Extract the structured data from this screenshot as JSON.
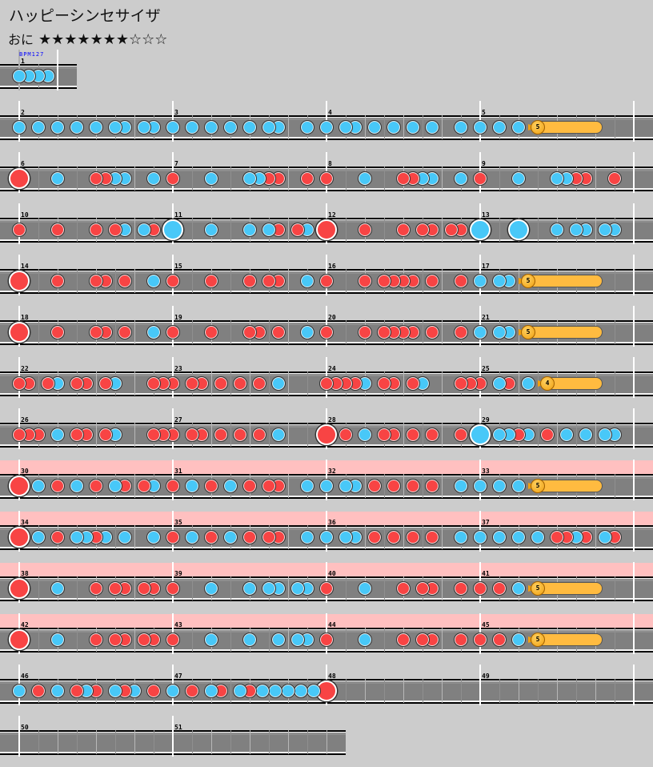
{
  "title": "ハッピーシンセサイザ",
  "difficulty": {
    "label": "おに",
    "level": 7,
    "max_level": 10,
    "stars": "★★★★★★★☆☆☆"
  },
  "bpm_label": "BPM127",
  "colors": {
    "don": "#f84444",
    "ka": "#48c8f8",
    "balloon": "#ffbb40",
    "gogo": "#ffc0c0",
    "lane": "#808080"
  },
  "note_legend": {
    "1": "don",
    "2": "ka",
    "3": "big-don",
    "4": "big-ka",
    "7": "balloon-start",
    "8": "balloon-end"
  },
  "rows": [
    {
      "gogo": false,
      "measures": [
        {
          "number": "1",
          "beats": 1,
          "notes": "2222"
        }
      ]
    },
    {
      "gogo": false,
      "measures": [
        {
          "number": "2",
          "notes": "2020202020220220"
        },
        {
          "number": "3",
          "notes": "2020202020220020"
        },
        {
          "number": "4",
          "notes": "2022020202020020"
        },
        {
          "number": "5",
          "notes": "2020207000008000",
          "balloons": [
            5
          ]
        }
      ]
    },
    {
      "gogo": false,
      "measures": [
        {
          "number": "6",
          "notes": "3000200011220020"
        },
        {
          "number": "7",
          "notes": "1000200022110010"
        },
        {
          "number": "8",
          "notes": "1000200011220020"
        },
        {
          "number": "9",
          "notes": "1000200022110010"
        }
      ]
    },
    {
      "gogo": false,
      "measures": [
        {
          "number": "10",
          "notes": "1000100010120210"
        },
        {
          "number": "11",
          "notes": "4000200020210120"
        },
        {
          "number": "12",
          "notes": "3000100010110110"
        },
        {
          "number": "13",
          "notes": "4000400020220220"
        }
      ]
    },
    {
      "gogo": false,
      "measures": [
        {
          "number": "14",
          "notes": "3000100011010020"
        },
        {
          "number": "15",
          "notes": "1000100010110020"
        },
        {
          "number": "16",
          "notes": "1000101111010010"
        },
        {
          "number": "17",
          "notes": "2022070000008000",
          "balloons": [
            5
          ]
        }
      ]
    },
    {
      "gogo": false,
      "measures": [
        {
          "number": "18",
          "notes": "3000100011010020"
        },
        {
          "number": "19",
          "notes": "1000100011010020"
        },
        {
          "number": "20",
          "notes": "1000101111010010"
        },
        {
          "number": "21",
          "notes": "2022070000008000",
          "balloons": [
            5
          ]
        }
      ]
    },
    {
      "gogo": false,
      "measures": [
        {
          "number": "22",
          "notes": "1101201101200011"
        },
        {
          "number": "23",
          "notes": "1011010101020000"
        },
        {
          "number": "24",
          "notes": "1111201101200011"
        },
        {
          "number": "25",
          "notes": "1021020700008000",
          "balloons": [
            4
          ]
        }
      ]
    },
    {
      "gogo": false,
      "measures": [
        {
          "number": "26",
          "notes": "1110201101200011"
        },
        {
          "number": "27",
          "notes": "1011010101020000"
        },
        {
          "number": "28",
          "notes": "3010201101010010"
        },
        {
          "number": "29",
          "notes": "4022120102020220"
        }
      ]
    },
    {
      "gogo": true,
      "measures": [
        {
          "number": "30",
          "notes": "3020102010210120"
        },
        {
          "number": "31",
          "notes": "1020102010110020"
        },
        {
          "number": "32",
          "notes": "2022010101010020"
        },
        {
          "number": "33",
          "notes": "2020207000008000",
          "balloons": [
            5
          ]
        }
      ]
    },
    {
      "gogo": true,
      "measures": [
        {
          "number": "34",
          "notes": "3020102212020020"
        },
        {
          "number": "35",
          "notes": "1020102010110020"
        },
        {
          "number": "36",
          "notes": "2022010101010020"
        },
        {
          "number": "37",
          "notes": "2020202011210210"
        }
      ]
    },
    {
      "gogo": true,
      "measures": [
        {
          "number": "38",
          "notes": "3000200010110110"
        },
        {
          "number": "39",
          "notes": "1000200020220220"
        },
        {
          "number": "40",
          "notes": "1000200010110010"
        },
        {
          "number": "41",
          "notes": "1010207000008000",
          "balloons": [
            5
          ]
        }
      ]
    },
    {
      "gogo": true,
      "measures": [
        {
          "number": "42",
          "notes": "3000200010110110"
        },
        {
          "number": "43",
          "notes": "1000200020020220"
        },
        {
          "number": "44",
          "notes": "1000200010110010"
        },
        {
          "number": "45",
          "notes": "1010207000008000",
          "balloons": [
            5
          ]
        }
      ]
    },
    {
      "gogo": false,
      "measures": [
        {
          "number": "46",
          "notes": "2010201210212010"
        },
        {
          "number": "47",
          "notes": "200000100000200100000200100020002000200020002000"
        },
        {
          "number": "48",
          "notes": "3000000000000000"
        },
        {
          "number": "49",
          "notes": "0000000000000000"
        }
      ]
    },
    {
      "gogo": false,
      "measures": [
        {
          "number": "50",
          "notes": "0000000000000000"
        },
        {
          "number": "51",
          "notes": "0000000000000000"
        }
      ]
    }
  ]
}
